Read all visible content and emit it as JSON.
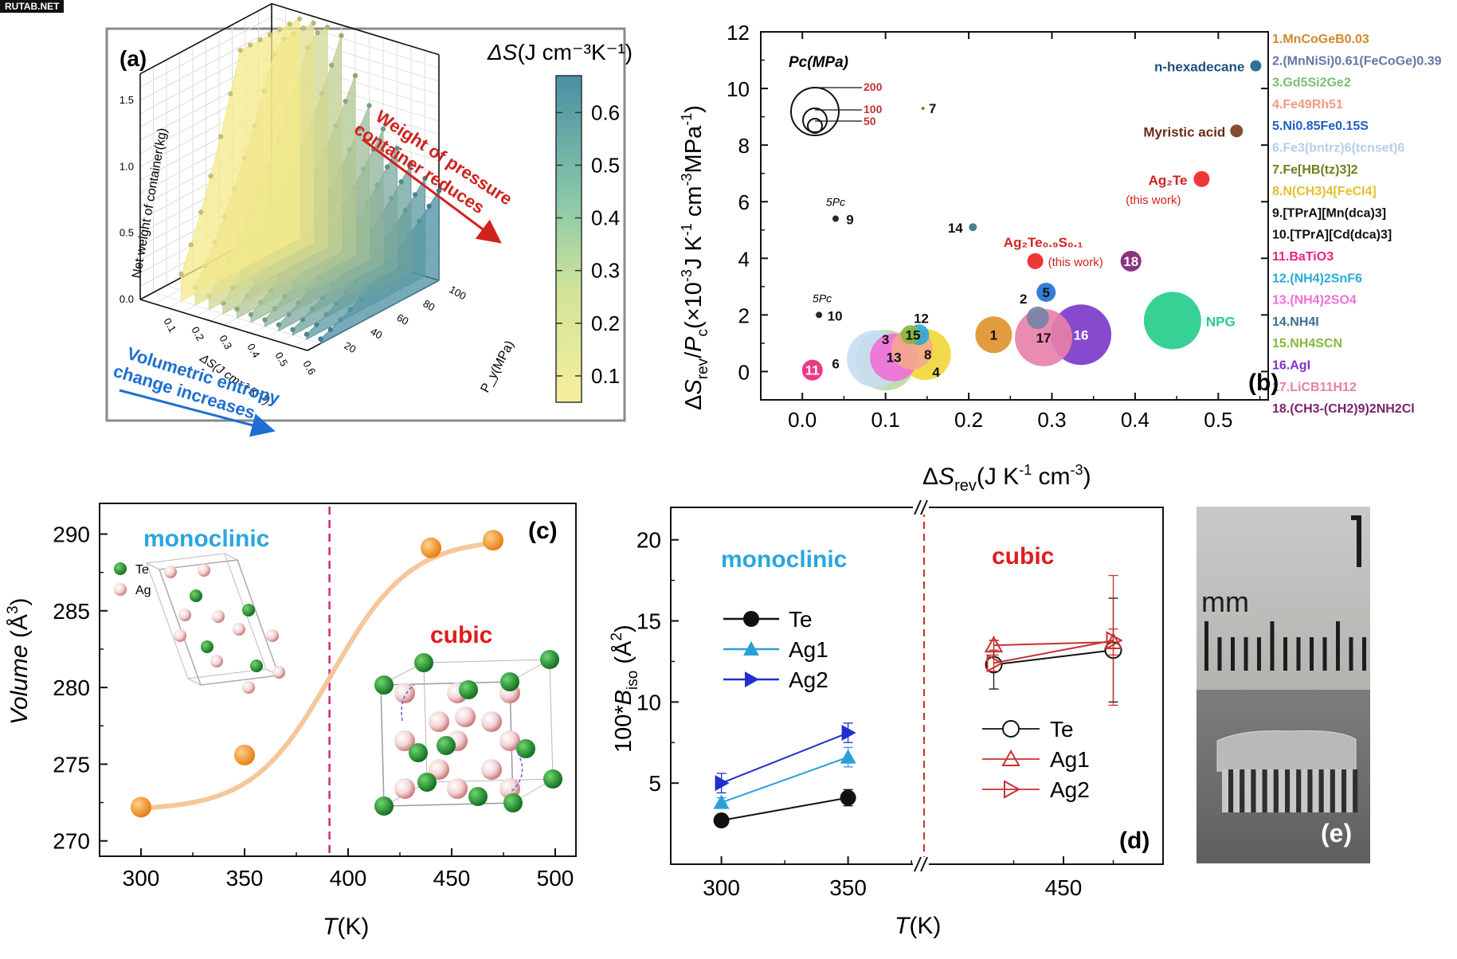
{
  "watermark": "RUTAB.NET",
  "chart_data": [
    {
      "panel": "a",
      "type": "area",
      "panel_label": "(a)",
      "colorbar_title_main": "ΔS",
      "colorbar_title_unit": "(J cm⁻³K⁻¹)",
      "colorbar_ticks": [
        "0.1",
        "0.2",
        "0.3",
        "0.4",
        "0.5",
        "0.6"
      ],
      "colorbar_range": [
        0.05,
        0.67
      ],
      "zlabel": "Net weight of container(kg)",
      "z_ticks": [
        "0.0",
        "0.5",
        "1.0",
        "1.5"
      ],
      "xlabel": "ΔS(J cm⁻³ K⁻¹)",
      "x_ticks": [
        "0.1",
        "0.2",
        "0.3",
        "0.4",
        "0.5",
        "0.6"
      ],
      "ylabel": "P_y(MPa)",
      "y_ticks": [
        "20",
        "40",
        "60",
        "80",
        "100"
      ],
      "annotation_top": "Weight of pressure container reduces",
      "annotation_top_line1": "Weight of pressure",
      "annotation_top_line2": "container reduces",
      "annotation_bottom_line1": "Volumetric entropy",
      "annotation_bottom_line2": "change increases",
      "slice_ds": [
        0.1,
        0.15,
        0.2,
        0.25,
        0.3,
        0.35,
        0.4,
        0.45,
        0.5,
        0.55,
        0.6
      ],
      "colors": {
        "yellow": "#f4e98a",
        "teal": "#4a8fa3"
      }
    },
    {
      "panel": "b",
      "type": "scatter",
      "panel_label": "(b)",
      "xlabel": "ΔSrev(J K⁻¹ cm⁻³)",
      "ylabel": "ΔSrev/Pc(×10⁻³J K⁻¹ cm⁻³MPa⁻¹)",
      "xlim": [
        -0.05,
        0.56
      ],
      "ylim": [
        -1.0,
        12.0
      ],
      "x_ticks": [
        "0.0",
        "0.1",
        "0.2",
        "0.3",
        "0.4",
        "0.5"
      ],
      "y_ticks": [
        "0",
        "2",
        "4",
        "6",
        "8",
        "10",
        "12"
      ],
      "size_legend_title": "Pc(MPa)",
      "size_legend_values": [
        "200",
        "100",
        "50"
      ],
      "points": [
        {
          "label": "1",
          "x": 0.23,
          "y": 1.3,
          "r": 23,
          "color": "#e0902a"
        },
        {
          "label": "2",
          "x": 0.283,
          "y": 1.9,
          "r": 14,
          "color": "#7582a8"
        },
        {
          "label": "3",
          "x": 0.1,
          "y": 0.4,
          "r": 38,
          "color": "#b9d9a8"
        },
        {
          "label": "4",
          "x": 0.132,
          "y": 0.8,
          "r": 26,
          "color": "#f4a98d"
        },
        {
          "label": "5",
          "x": 0.293,
          "y": 2.8,
          "r": 12,
          "color": "#1f6fd1"
        },
        {
          "label": "6",
          "x": 0.088,
          "y": 0.45,
          "r": 36,
          "color": "#c9ddf2"
        },
        {
          "label": "7",
          "x": 0.145,
          "y": 9.3,
          "r": 2,
          "color": "#6f7d1a"
        },
        {
          "label": "8",
          "x": 0.148,
          "y": 0.6,
          "r": 32,
          "color": "#f2d63a"
        },
        {
          "label": "9",
          "x": 0.04,
          "y": 5.4,
          "r": 4,
          "color": "#111111"
        },
        {
          "label": "10",
          "x": 0.02,
          "y": 2.0,
          "r": 4,
          "color": "#111111"
        },
        {
          "label": "11",
          "x": 0.012,
          "y": 0.05,
          "r": 13,
          "color": "#e9247a"
        },
        {
          "label": "12",
          "x": 0.14,
          "y": 1.3,
          "r": 13,
          "color": "#2aa9d8"
        },
        {
          "label": "13",
          "x": 0.11,
          "y": 0.5,
          "r": 30,
          "color": "#ee6fd6"
        },
        {
          "label": "14",
          "x": 0.205,
          "y": 5.1,
          "r": 5,
          "color": "#3b6f8c"
        },
        {
          "label": "15",
          "x": 0.13,
          "y": 1.3,
          "r": 12,
          "color": "#86b83c"
        },
        {
          "label": "16",
          "x": 0.335,
          "y": 1.3,
          "r": 38,
          "color": "#7a35c9"
        },
        {
          "label": "17",
          "x": 0.29,
          "y": 1.2,
          "r": 36,
          "color": "#e87fa8"
        },
        {
          "label": "18",
          "x": 0.395,
          "y": 3.9,
          "r": 13,
          "color": "#7a1f70"
        },
        {
          "label": "n-hexadecane",
          "x": 0.545,
          "y": 10.8,
          "r": 7,
          "color": "#1e5f8f"
        },
        {
          "label": "Myristic acid",
          "x": 0.522,
          "y": 8.5,
          "r": 8,
          "color": "#7a3a1e"
        },
        {
          "label": "Ag₂Te",
          "x": 0.48,
          "y": 6.8,
          "r": 10,
          "color": "#ee2020"
        },
        {
          "label": "Ag₂Te₀.₉S₀.₁",
          "x": 0.28,
          "y": 3.9,
          "r": 10,
          "color": "#ee2020"
        },
        {
          "label": "NPG",
          "x": 0.445,
          "y": 1.8,
          "r": 36,
          "color": "#22cc8a"
        }
      ],
      "annotations": {
        "this_work": "(this work)",
        "five_pc": "5Pc"
      },
      "legend": [
        {
          "text": "1.MnCoGeB0.03",
          "color": "#d18a2c"
        },
        {
          "text": "2.(MnNiSi)0.61(FeCoGe)0.39",
          "color": "#6a73a8"
        },
        {
          "text": "3.Gd5Si2Ge2",
          "color": "#78c06e"
        },
        {
          "text": "4.Fe49Rh51",
          "color": "#ef9b84"
        },
        {
          "text": "5.Ni0.85Fe0.15S",
          "color": "#1f5fc8"
        },
        {
          "text": "6.Fe3(bntrz)6(tcnset)6",
          "color": "#b5cfe9"
        },
        {
          "text": "7.Fe[HB(tz)3]2",
          "color": "#6f7d1a"
        },
        {
          "text": "8.N(CH3)4[FeCl4]",
          "color": "#e2c02e"
        },
        {
          "text": "9.[TPrA][Mn(dca)3]",
          "color": "#111111"
        },
        {
          "text": "10.[TPrA][Cd(dca)3]",
          "color": "#111111"
        },
        {
          "text": "11.BaTiO3",
          "color": "#e9247a"
        },
        {
          "text": "12.(NH4)2SnF6",
          "color": "#2aa9d8"
        },
        {
          "text": "13.(NH4)2SO4",
          "color": "#ee6fd6"
        },
        {
          "text": "14.NH4I",
          "color": "#3b6f8c"
        },
        {
          "text": "15.NH4SCN",
          "color": "#86b83c"
        },
        {
          "text": "16.AgI",
          "color": "#7a35c9"
        },
        {
          "text": "17.LiCB11H12",
          "color": "#e87fa8"
        },
        {
          "text": "18.(CH3-(CH2)9)2NH2Cl",
          "color": "#7a1f70"
        }
      ]
    },
    {
      "panel": "c",
      "type": "line",
      "panel_label": "(c)",
      "xlabel": "T(K)",
      "ylabel": "Volume (Å³)",
      "xlim": [
        280,
        510
      ],
      "ylim": [
        269,
        292
      ],
      "x_ticks": [
        "300",
        "350",
        "400",
        "450",
        "500"
      ],
      "y_ticks": [
        "270",
        "275",
        "280",
        "285",
        "290"
      ],
      "x": [
        300,
        350,
        440,
        470
      ],
      "y": [
        272.2,
        275.6,
        289.1,
        289.6
      ],
      "transition_T": 391,
      "phase_left": "monoclinic",
      "phase_right": "cubic",
      "atom_legend": [
        "Te",
        "Ag"
      ],
      "colors": {
        "points": "#f28a1b",
        "curve": "#f6c79a",
        "dash": "#d6247c",
        "mono": "#29a7de",
        "cubic": "#e01b1b"
      }
    },
    {
      "panel": "d",
      "type": "line",
      "panel_label": "(d)",
      "xlabel": "T(K)",
      "ylabel": "100*Biso (Å²)",
      "ylim": [
        0,
        22
      ],
      "x_ticks": [
        "300",
        "350",
        "450"
      ],
      "y_ticks": [
        "5",
        "10",
        "15",
        "20"
      ],
      "phase_left": "monoclinic",
      "phase_right": "cubic",
      "left_series": [
        {
          "name": "Te",
          "x": [
            300,
            350
          ],
          "y": [
            2.7,
            4.1
          ],
          "err": [
            0.3,
            0.5
          ],
          "color": "#111111",
          "marker": "circle"
        },
        {
          "name": "Ag1",
          "x": [
            300,
            350
          ],
          "y": [
            3.8,
            6.6
          ],
          "err": [
            0.3,
            0.6
          ],
          "color": "#2a9fd8",
          "marker": "triangle-up"
        },
        {
          "name": "Ag2",
          "x": [
            300,
            350
          ],
          "y": [
            5.0,
            8.1
          ],
          "err": [
            0.6,
            0.6
          ],
          "color": "#1f2fd1",
          "marker": "triangle-right"
        }
      ],
      "right_series": [
        {
          "name": "Te",
          "x": [
            415,
            475
          ],
          "y": [
            12.3,
            13.2
          ],
          "err": [
            1.5,
            3.2
          ],
          "color": "#111111",
          "marker": "circle-open"
        },
        {
          "name": "Ag1",
          "x": [
            415,
            475
          ],
          "y": [
            13.5,
            13.7
          ],
          "err": [
            0.3,
            0.8
          ],
          "color": "#c8302f",
          "marker": "triangle-up-open"
        },
        {
          "name": "Ag2",
          "x": [
            415,
            475
          ],
          "y": [
            12.4,
            13.8
          ],
          "err": [
            0.5,
            4.0
          ],
          "color": "#c8302f",
          "marker": "triangle-right-open"
        }
      ]
    },
    {
      "panel": "e",
      "type": "photo",
      "panel_label": "(e)",
      "scale_text": "mm"
    }
  ]
}
